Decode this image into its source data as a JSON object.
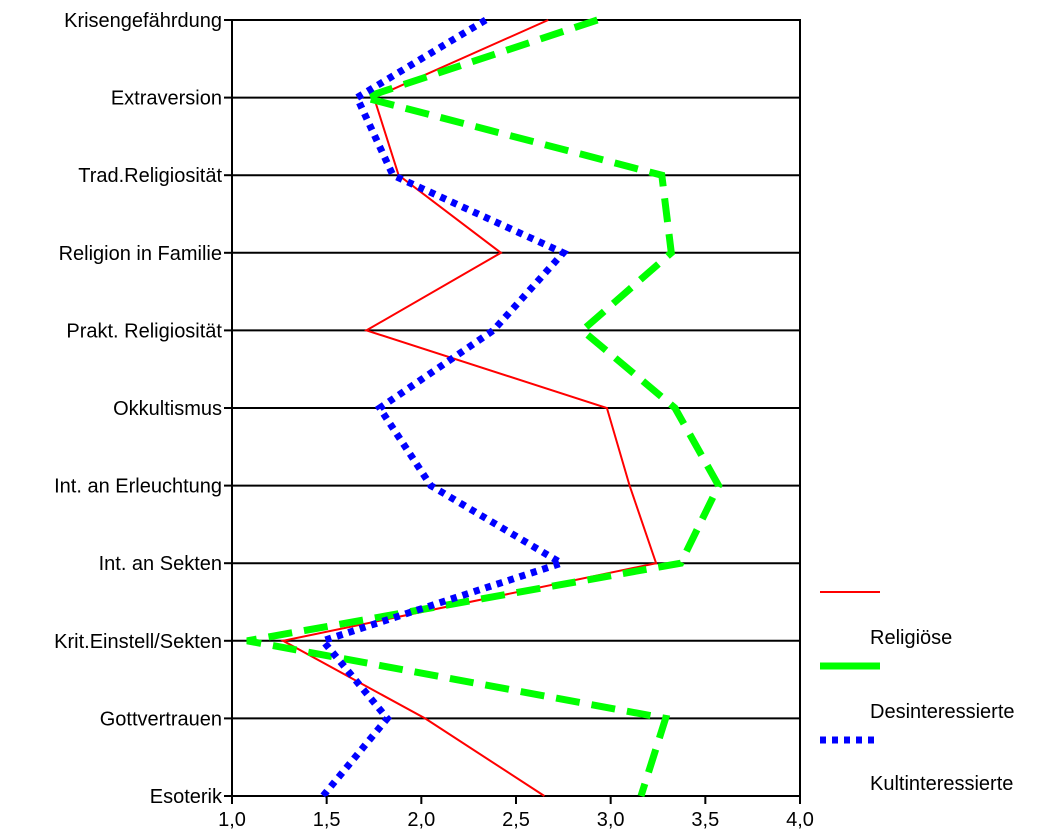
{
  "chart_data": {
    "type": "line",
    "orientation": "horizontal-profile",
    "title": "",
    "xlabel": "",
    "ylabel": "",
    "xlim": [
      1.0,
      4.0
    ],
    "x_ticks": [
      "1,0",
      "1,5",
      "2,0",
      "2,5",
      "3,0",
      "3,5",
      "4,0"
    ],
    "x_tick_values": [
      1.0,
      1.5,
      2.0,
      2.5,
      3.0,
      3.5,
      4.0
    ],
    "grid": "horizontal lines at each category",
    "legend_position": "right",
    "categories": [
      "Krisengefährdung",
      "Extraversion",
      "Trad.Religiosität",
      "Religion in Familie",
      "Prakt. Religiosität",
      "Okkultismus",
      "Int. an Erleuchtung",
      "Int. an Sekten",
      "Krit.Einstell/Sekten",
      "Gottvertrauen",
      "Esoterik"
    ],
    "series": [
      {
        "name": "Religiöse",
        "color": "#ff0000",
        "style": "solid",
        "values": [
          2.67,
          1.75,
          1.88,
          2.42,
          1.71,
          2.98,
          3.1,
          3.24,
          1.27,
          2.02,
          2.65
        ]
      },
      {
        "name": "Desinteressierte",
        "color": "#00ff00",
        "style": "dashed",
        "values": [
          2.93,
          1.7,
          3.27,
          3.32,
          2.85,
          3.34,
          3.57,
          3.37,
          1.08,
          3.29,
          3.16
        ]
      },
      {
        "name": "Kultinteressierte",
        "color": "#0000ff",
        "style": "dotted",
        "values": [
          2.34,
          1.66,
          1.85,
          2.75,
          2.38,
          1.78,
          2.05,
          2.74,
          1.48,
          1.82,
          1.48
        ]
      }
    ],
    "legend": {
      "entries": [
        "",
        "Religiöse",
        "Desinteressierte",
        "Kultinteressierte"
      ]
    }
  }
}
